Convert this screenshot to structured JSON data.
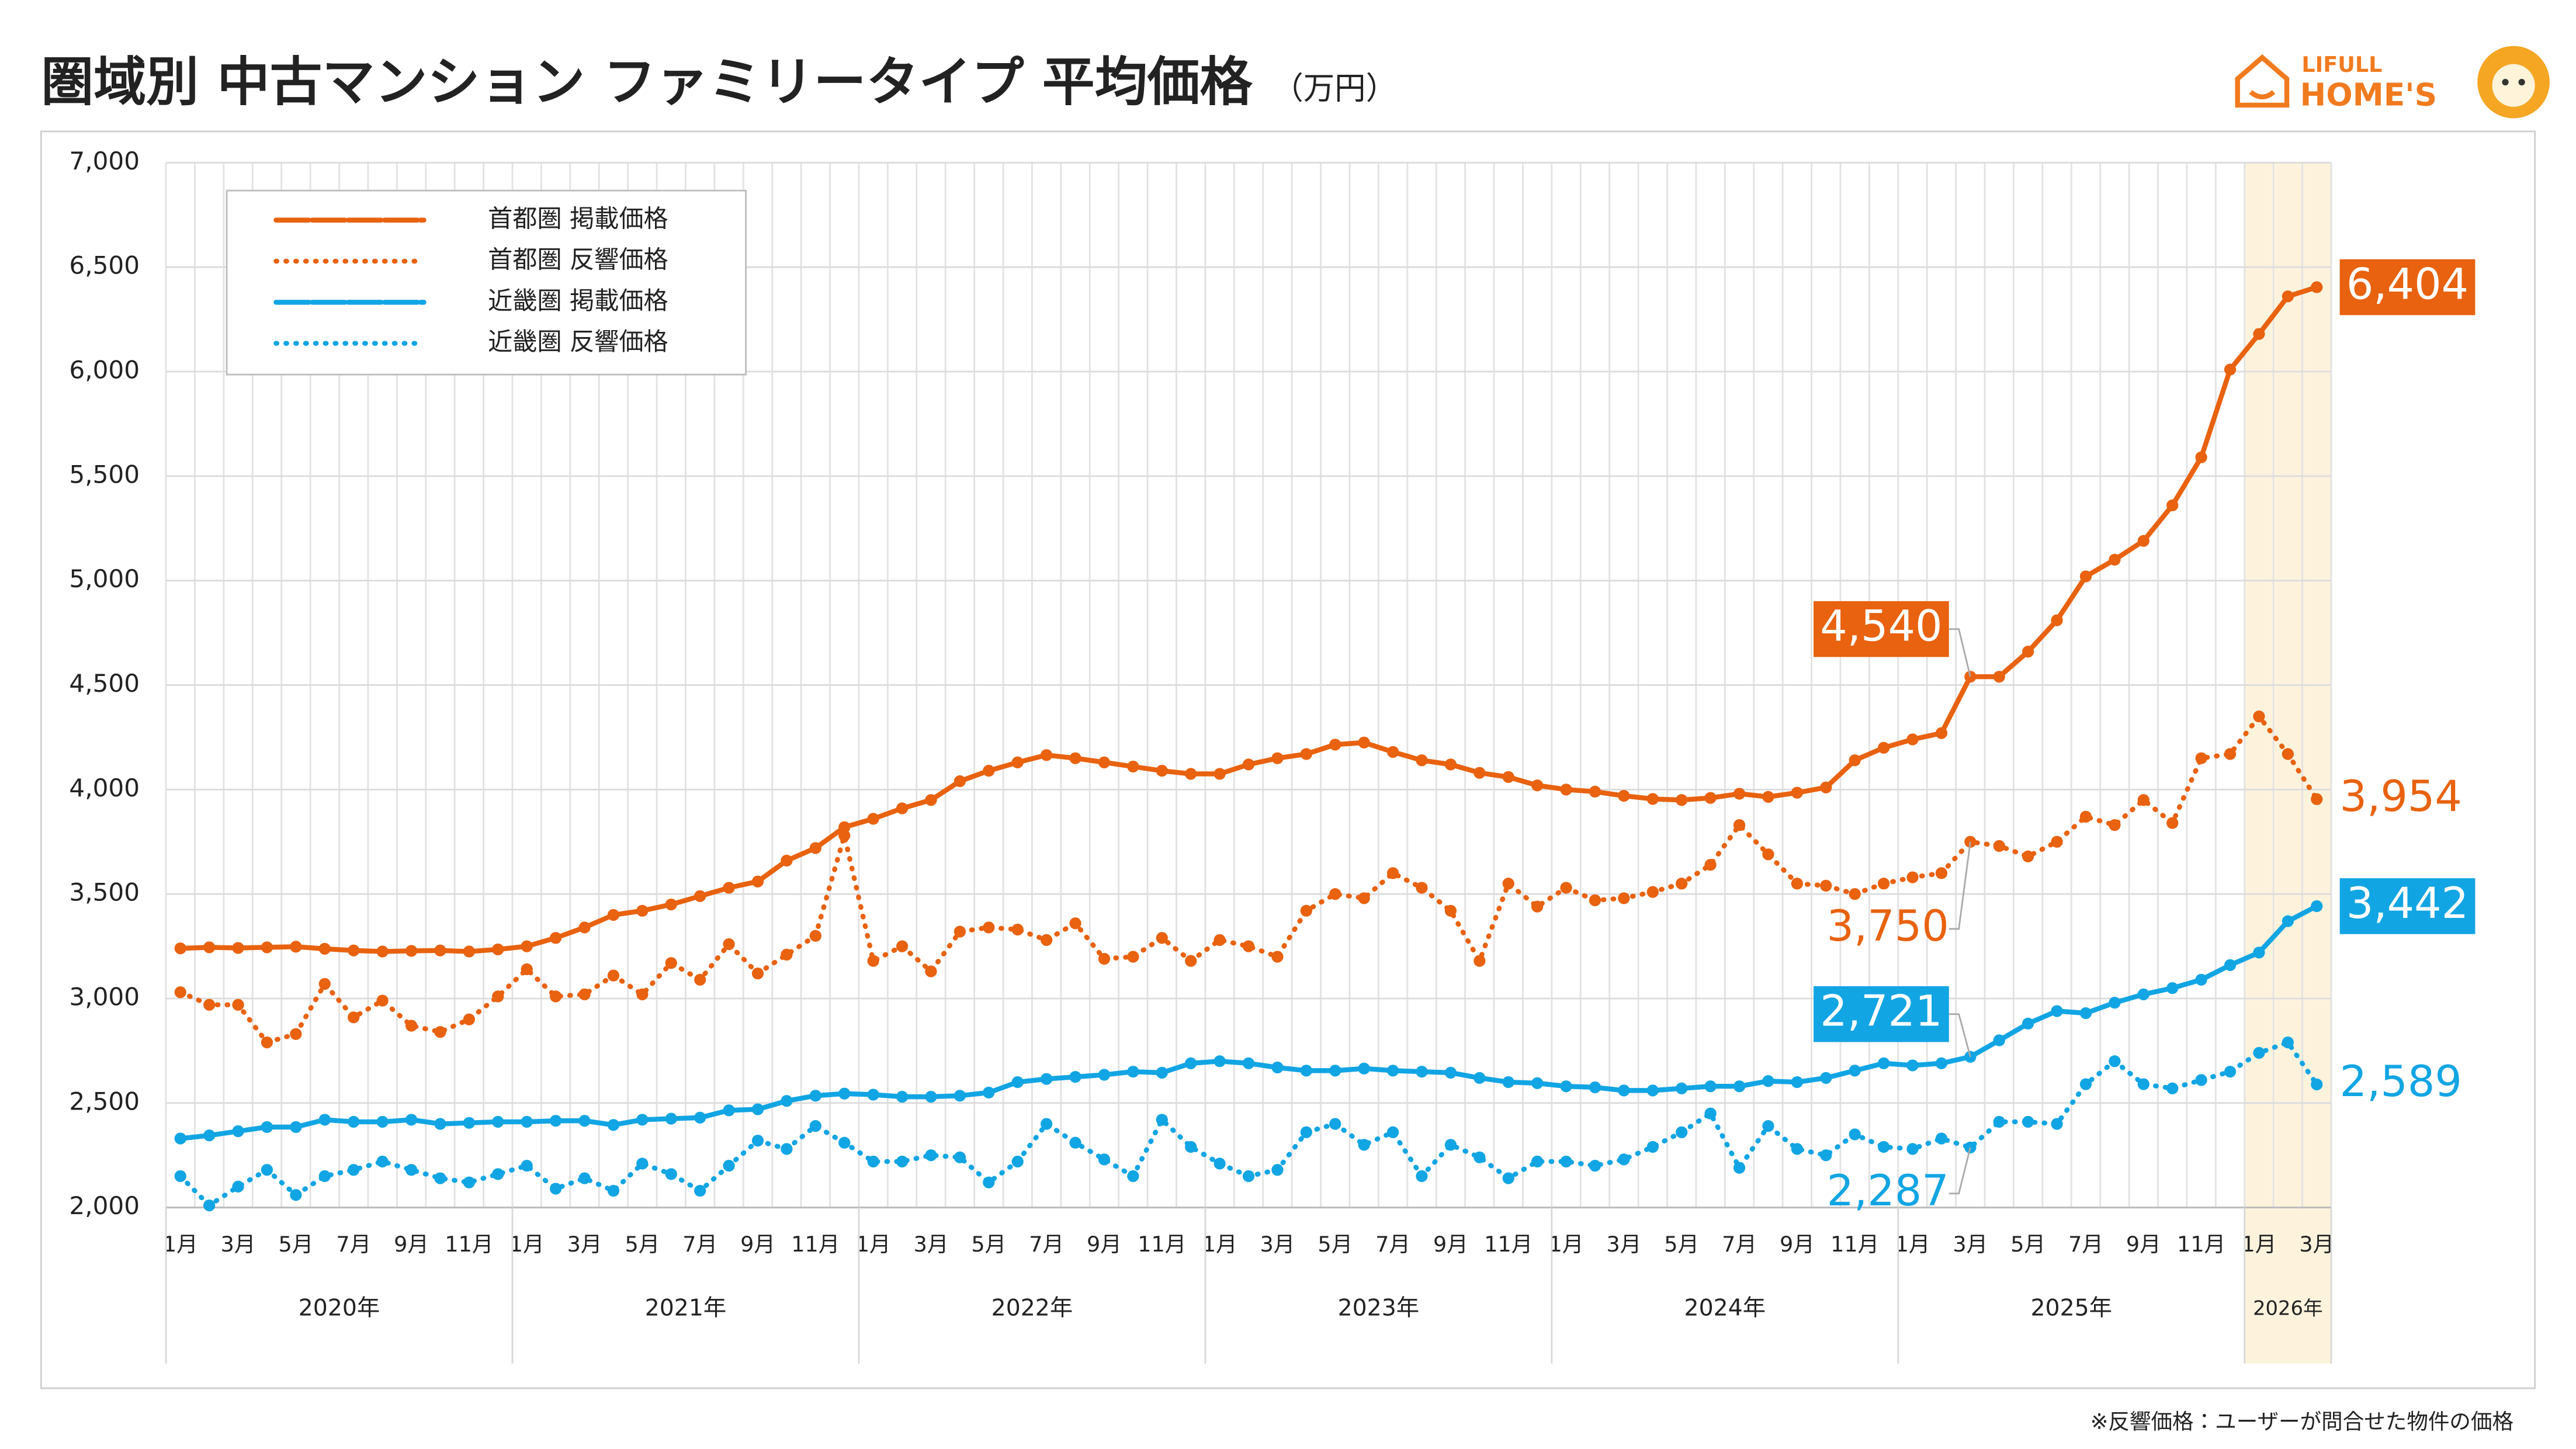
{
  "chart_data": {
    "type": "line",
    "title": "圏域別 中古マンション ファミリータイプ 平均価格",
    "unit": "（万円）",
    "note": "※反響価格：ユーザーが問合せた物件の価格",
    "categories": [
      "1月",
      null,
      "3月",
      null,
      "5月",
      null,
      "7月",
      null,
      "9月",
      null,
      "11月",
      null,
      "1月",
      null,
      "3月",
      null,
      "5月",
      null,
      "7月",
      null,
      "9月",
      null,
      "11月",
      null,
      "1月",
      null,
      "3月",
      null,
      "5月",
      null,
      "7月",
      null,
      "9月",
      null,
      "11月",
      null,
      "1月",
      null,
      "3月",
      null,
      "5月",
      null,
      "7月",
      null,
      "9月",
      null,
      "11月",
      null,
      "1月",
      null,
      "3月",
      null,
      "5月",
      null,
      "7月",
      null,
      "9月",
      null,
      "11月",
      null,
      "1月",
      null,
      "3月",
      null,
      "5月",
      null,
      "7月",
      null,
      "9月",
      null,
      "11月",
      null,
      "1月",
      null,
      "3月"
    ],
    "years": [
      {
        "label": "2020年",
        "months": 12
      },
      {
        "label": "2021年",
        "months": 12
      },
      {
        "label": "2022年",
        "months": 12
      },
      {
        "label": "2023年",
        "months": 12
      },
      {
        "label": "2024年",
        "months": 12
      },
      {
        "label": "2025年",
        "months": 12
      },
      {
        "label": "2026年",
        "months": 3
      }
    ],
    "highlight_year": 6,
    "ylim": [
      2000,
      7000
    ],
    "yticks": [
      {
        "value": 2000,
        "label": "2,000"
      },
      {
        "value": 2500,
        "label": "2,500"
      },
      {
        "value": 3000,
        "label": "3,000"
      },
      {
        "value": 3500,
        "label": "3,500"
      },
      {
        "value": 4000,
        "label": "4,000"
      },
      {
        "value": 4500,
        "label": "4,500"
      },
      {
        "value": 5000,
        "label": "5,000"
      },
      {
        "value": 5500,
        "label": "5,500"
      },
      {
        "value": 6000,
        "label": "6,000"
      },
      {
        "value": 6500,
        "label": "6,500"
      },
      {
        "value": 7000,
        "label": "7,000"
      }
    ],
    "grid": true,
    "legend": "upper left",
    "series": [
      {
        "name": "首都圏 掲載価格",
        "color": "#e8620f",
        "dash": "solid",
        "values": [
          3240,
          3245,
          3242,
          3245,
          3248,
          3238,
          3230,
          3225,
          3228,
          3230,
          3225,
          3235,
          3250,
          3290,
          3340,
          3400,
          3420,
          3450,
          3490,
          3530,
          3560,
          3660,
          3720,
          3820,
          3860,
          3910,
          3950,
          4040,
          4090,
          4130,
          4165,
          4150,
          4130,
          4110,
          4090,
          4075,
          4075,
          4120,
          4150,
          4170,
          4215,
          4225,
          4180,
          4140,
          4120,
          4080,
          4060,
          4020,
          4000,
          3990,
          3970,
          3955,
          3950,
          3960,
          3980,
          3965,
          3985,
          4010,
          4140,
          4200,
          4240,
          4270,
          4540,
          4540,
          4660,
          4810,
          5020,
          5100,
          5190,
          5360,
          5590,
          6010,
          6180,
          6360,
          6404
        ],
        "value_labels": [
          null,
          null,
          null,
          null,
          null,
          null,
          null,
          null,
          null,
          null,
          null,
          null,
          null,
          null,
          null,
          null,
          null,
          null,
          null,
          null,
          null,
          null,
          null,
          null,
          null,
          null,
          null,
          null,
          null,
          null,
          null,
          null,
          null,
          null,
          null,
          null,
          null,
          null,
          null,
          null,
          null,
          null,
          null,
          null,
          null,
          null,
          null,
          null,
          null,
          null,
          null,
          null,
          null,
          null,
          null,
          null,
          null,
          null,
          null,
          null,
          null,
          null,
          "4,540",
          null,
          null,
          null,
          null,
          null,
          null,
          null,
          null,
          null,
          null,
          null,
          "6,404"
        ]
      },
      {
        "name": "首都圏 反響価格",
        "color": "#e8620f",
        "dash": "dotted",
        "values": [
          3030,
          2970,
          2970,
          2790,
          2830,
          3070,
          2910,
          2990,
          2870,
          2840,
          2900,
          3010,
          3140,
          3010,
          3020,
          3110,
          3020,
          3170,
          3090,
          3260,
          3120,
          3210,
          3300,
          3780,
          3180,
          3250,
          3130,
          3320,
          3340,
          3330,
          3280,
          3360,
          3190,
          3200,
          3290,
          3180,
          3280,
          3250,
          3200,
          3420,
          3500,
          3480,
          3600,
          3530,
          3420,
          3180,
          3550,
          3440,
          3530,
          3470,
          3480,
          3510,
          3550,
          3640,
          3830,
          3690,
          3550,
          3540,
          3500,
          3550,
          3580,
          3600,
          3750,
          3730,
          3680,
          3750,
          3870,
          3830,
          3950,
          3840,
          4150,
          4170,
          4350,
          4170,
          3954
        ],
        "value_labels": [
          null,
          null,
          null,
          null,
          null,
          null,
          null,
          null,
          null,
          null,
          null,
          null,
          null,
          null,
          null,
          null,
          null,
          null,
          null,
          null,
          null,
          null,
          null,
          null,
          null,
          null,
          null,
          null,
          null,
          null,
          null,
          null,
          null,
          null,
          null,
          null,
          null,
          null,
          null,
          null,
          null,
          null,
          null,
          null,
          null,
          null,
          null,
          null,
          null,
          null,
          null,
          null,
          null,
          null,
          null,
          null,
          null,
          null,
          null,
          null,
          null,
          null,
          "3,750",
          null,
          null,
          null,
          null,
          null,
          null,
          null,
          null,
          null,
          null,
          null,
          "3,954"
        ]
      },
      {
        "name": "近畿圏 掲載価格",
        "color": "#12a5e3",
        "dash": "solid",
        "values": [
          2330,
          2345,
          2365,
          2385,
          2385,
          2420,
          2410,
          2410,
          2420,
          2400,
          2405,
          2410,
          2410,
          2415,
          2415,
          2395,
          2420,
          2425,
          2430,
          2465,
          2470,
          2510,
          2535,
          2545,
          2540,
          2530,
          2530,
          2535,
          2550,
          2600,
          2615,
          2625,
          2635,
          2650,
          2645,
          2690,
          2700,
          2690,
          2670,
          2655,
          2655,
          2665,
          2655,
          2650,
          2645,
          2620,
          2600,
          2595,
          2580,
          2575,
          2560,
          2560,
          2570,
          2580,
          2580,
          2605,
          2600,
          2620,
          2655,
          2690,
          2680,
          2690,
          2721,
          2800,
          2880,
          2940,
          2930,
          2980,
          3020,
          3050,
          3090,
          3160,
          3220,
          3370,
          3442
        ],
        "value_labels": [
          null,
          null,
          null,
          null,
          null,
          null,
          null,
          null,
          null,
          null,
          null,
          null,
          null,
          null,
          null,
          null,
          null,
          null,
          null,
          null,
          null,
          null,
          null,
          null,
          null,
          null,
          null,
          null,
          null,
          null,
          null,
          null,
          null,
          null,
          null,
          null,
          null,
          null,
          null,
          null,
          null,
          null,
          null,
          null,
          null,
          null,
          null,
          null,
          null,
          null,
          null,
          null,
          null,
          null,
          null,
          null,
          null,
          null,
          null,
          null,
          null,
          null,
          "2,721",
          null,
          null,
          null,
          null,
          null,
          null,
          null,
          null,
          null,
          null,
          null,
          "3,442"
        ]
      },
      {
        "name": "近畿圏 反響価格",
        "color": "#12a5e3",
        "dash": "dotted",
        "values": [
          2150,
          2010,
          2100,
          2180,
          2060,
          2150,
          2180,
          2220,
          2180,
          2140,
          2120,
          2160,
          2200,
          2090,
          2140,
          2080,
          2210,
          2160,
          2080,
          2200,
          2320,
          2280,
          2390,
          2310,
          2220,
          2220,
          2250,
          2240,
          2120,
          2220,
          2400,
          2310,
          2230,
          2150,
          2420,
          2290,
          2210,
          2150,
          2180,
          2360,
          2400,
          2300,
          2360,
          2150,
          2300,
          2240,
          2140,
          2220,
          2220,
          2200,
          2230,
          2290,
          2360,
          2450,
          2190,
          2390,
          2280,
          2250,
          2350,
          2290,
          2280,
          2330,
          2287,
          2410,
          2410,
          2400,
          2590,
          2700,
          2590,
          2570,
          2610,
          2650,
          2740,
          2790,
          2589
        ],
        "value_labels": [
          null,
          null,
          null,
          null,
          null,
          null,
          null,
          null,
          null,
          null,
          null,
          null,
          null,
          null,
          null,
          null,
          null,
          null,
          null,
          null,
          null,
          null,
          null,
          null,
          null,
          null,
          null,
          null,
          null,
          null,
          null,
          null,
          null,
          null,
          null,
          null,
          null,
          null,
          null,
          null,
          null,
          null,
          null,
          null,
          null,
          null,
          null,
          null,
          null,
          null,
          null,
          null,
          null,
          null,
          null,
          null,
          null,
          null,
          null,
          null,
          null,
          null,
          "2,287",
          null,
          null,
          null,
          null,
          null,
          null,
          null,
          null,
          null,
          null,
          null,
          "2,589"
        ]
      }
    ]
  },
  "logo": {
    "line1": "LIFULL",
    "line2": "HOME'S"
  }
}
